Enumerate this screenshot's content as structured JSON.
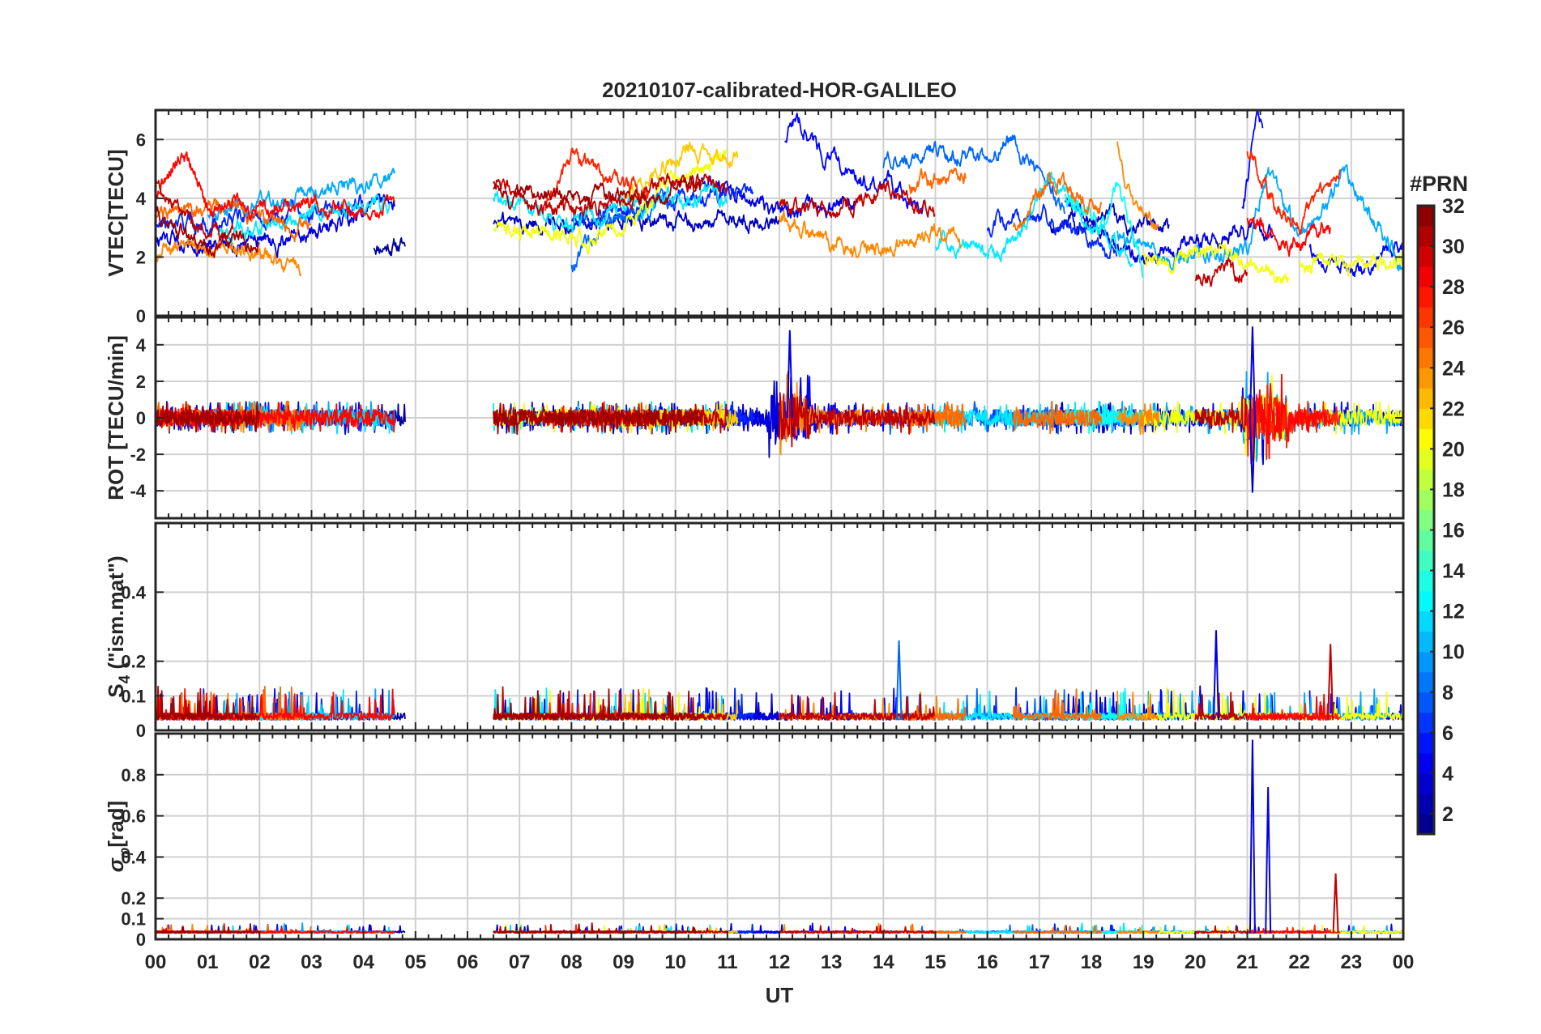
{
  "chart_data": {
    "type": "line",
    "title": "20210107-calibrated-HOR-GALILEO",
    "x_label": "UT",
    "x_tick_labels": [
      "00",
      "01",
      "02",
      "03",
      "04",
      "05",
      "06",
      "07",
      "08",
      "09",
      "10",
      "11",
      "12",
      "13",
      "14",
      "15",
      "16",
      "17",
      "18",
      "19",
      "20",
      "21",
      "22",
      "23",
      "00"
    ],
    "xlim_hours": [
      0,
      24
    ],
    "grid": true,
    "panels": [
      {
        "id": "vtec",
        "ylabel": "VTEC[TECU]",
        "ylim": [
          0,
          7
        ],
        "yticks": [
          0,
          2,
          4,
          6
        ],
        "ytick_labels": [
          "0",
          "2",
          "4",
          "6"
        ]
      },
      {
        "id": "rot",
        "ylabel": "ROT [TECU/min]",
        "ylim": [
          -5.5,
          5.5
        ],
        "yticks": [
          -4,
          -2,
          0,
          2,
          4
        ],
        "ytick_labels": [
          "-4",
          "-2",
          "0",
          "2",
          "4"
        ]
      },
      {
        "id": "s4",
        "ylabel_main": "S",
        "ylabel_sub": "4",
        "ylabel_tail": " (\"ism.mat\")",
        "ylim": [
          0,
          0.6
        ],
        "yticks": [
          0,
          0.1,
          0.2,
          0.4
        ],
        "ytick_labels": [
          "0",
          "0.1",
          "0.2",
          "0.4"
        ]
      },
      {
        "id": "sigma",
        "ylabel_main": "σ",
        "ylabel_sub": "φ",
        "ylabel_tail": "[rad]",
        "ylim": [
          0,
          1
        ],
        "yticks": [
          0,
          0.1,
          0.2,
          0.4,
          0.6,
          0.8
        ],
        "ytick_labels": [
          "0",
          "0.1",
          "0.2",
          "0.4",
          "0.6",
          "0.8"
        ]
      }
    ],
    "colorbar": {
      "title": "#PRN",
      "range": [
        1,
        32
      ],
      "tick_values": [
        2,
        4,
        6,
        8,
        10,
        12,
        14,
        16,
        18,
        20,
        22,
        24,
        26,
        28,
        30,
        32
      ],
      "tick_labels": [
        "2",
        "4",
        "6",
        "8",
        "10",
        "12",
        "14",
        "16",
        "18",
        "20",
        "22",
        "24",
        "26",
        "28",
        "30",
        "32"
      ],
      "colormap": "jet"
    },
    "series": [
      {
        "name": "2",
        "segments": [
          [
            4.2,
            4.8
          ]
        ],
        "anchors": [
          [
            0,
            2.4
          ]
        ]
      },
      {
        "name": "3",
        "segments": [
          [
            6.5,
            12.0
          ],
          [
            17.2,
            19.5
          ]
        ],
        "anchors": [
          [
            0,
            3.2
          ]
        ]
      },
      {
        "name": "4",
        "segments": [
          [
            0.0,
            4.6
          ],
          [
            10.5,
            13.5
          ],
          [
            17.5,
            21.5
          ]
        ],
        "anchors": [
          [
            0,
            2.6
          ],
          [
            2.5,
            2.5
          ],
          [
            3.0,
            2.7
          ],
          [
            4.0,
            3.6
          ],
          [
            4.6,
            3.7
          ],
          [
            10.5,
            4.6
          ],
          [
            11.5,
            4.0
          ],
          [
            12.0,
            3.4
          ],
          [
            13.5,
            3.8
          ],
          [
            17.5,
            3.8
          ],
          [
            19.0,
            1.8
          ],
          [
            21.0,
            2.9
          ],
          [
            21.5,
            2.6
          ]
        ]
      },
      {
        "name": "5",
        "segments": [
          [
            12.1,
            14.8
          ],
          [
            20.9,
            21.3
          ],
          [
            22.2,
            24.0
          ]
        ],
        "anchors": [
          [
            12.1,
            6.0
          ],
          [
            12.3,
            6.8
          ],
          [
            12.8,
            5.6
          ],
          [
            13.5,
            4.6
          ],
          [
            14.0,
            4.6
          ],
          [
            14.8,
            3.8
          ],
          [
            20.9,
            3.5
          ],
          [
            21.2,
            6.6
          ],
          [
            22.2,
            2.2
          ],
          [
            23.0,
            1.6
          ],
          [
            24.0,
            2.5
          ]
        ]
      },
      {
        "name": "6",
        "segments": [
          [
            0.0,
            4.0
          ],
          [
            8.0,
            11.5
          ],
          [
            16.0,
            18.5
          ]
        ],
        "anchors": [
          [
            0,
            3.0
          ],
          [
            1.0,
            3.2
          ],
          [
            2.5,
            3.5
          ],
          [
            4.0,
            3.8
          ],
          [
            8.0,
            3.4
          ],
          [
            9.5,
            3.8
          ],
          [
            11.5,
            4.2
          ],
          [
            16.0,
            3.0
          ],
          [
            17.0,
            3.6
          ],
          [
            18.5,
            2.0
          ]
        ]
      },
      {
        "name": "8",
        "segments": [
          [
            8.0,
            10.0
          ],
          [
            14.0,
            17.5
          ]
        ],
        "anchors": [
          [
            8.0,
            1.8
          ],
          [
            8.5,
            2.8
          ],
          [
            9.2,
            3.6
          ],
          [
            10.0,
            3.9
          ],
          [
            14.0,
            5.2
          ],
          [
            15.0,
            5.6
          ],
          [
            16.0,
            5.4
          ],
          [
            16.5,
            6.1
          ],
          [
            17.5,
            3.4
          ]
        ]
      },
      {
        "name": "10",
        "segments": [
          [
            1.0,
            4.6
          ],
          [
            18.5,
            24.0
          ]
        ],
        "anchors": [
          [
            1.0,
            3.5
          ],
          [
            2.5,
            3.8
          ],
          [
            4.0,
            4.5
          ],
          [
            4.6,
            4.7
          ],
          [
            18.5,
            2.8
          ],
          [
            19.5,
            2.0
          ],
          [
            21.0,
            2.2
          ],
          [
            21.4,
            5.0
          ],
          [
            22.0,
            2.6
          ],
          [
            22.9,
            4.8
          ],
          [
            24.0,
            1.6
          ]
        ]
      },
      {
        "name": "12",
        "segments": [
          [
            1.2,
            4.5
          ],
          [
            6.5,
            11.0
          ],
          [
            15.0,
            18.8
          ]
        ],
        "anchors": [
          [
            1.2,
            2.8
          ],
          [
            3.0,
            3.5
          ],
          [
            4.5,
            3.9
          ],
          [
            6.5,
            3.9
          ],
          [
            8.0,
            3.2
          ],
          [
            9.5,
            3.8
          ],
          [
            11.0,
            4.0
          ],
          [
            15.0,
            2.5
          ],
          [
            16.5,
            2.3
          ],
          [
            17.2,
            4.8
          ],
          [
            18.0,
            3.0
          ],
          [
            18.8,
            2.0
          ]
        ]
      },
      {
        "name": "13",
        "segments": [
          [
            17.5,
            19.0
          ]
        ],
        "anchors": [
          [
            17.5,
            4.2
          ],
          [
            18.2,
            3.0
          ],
          [
            18.5,
            4.5
          ],
          [
            19.0,
            1.6
          ]
        ]
      },
      {
        "name": "20",
        "segments": [
          [
            6.5,
            11.0
          ],
          [
            19.0,
            21.8
          ],
          [
            22.0,
            24.0
          ]
        ],
        "anchors": [
          [
            6.5,
            3.0
          ],
          [
            7.5,
            2.8
          ],
          [
            8.5,
            2.6
          ],
          [
            9.5,
            3.8
          ],
          [
            10.4,
            5.0
          ],
          [
            11.0,
            5.5
          ],
          [
            19.0,
            2.0
          ],
          [
            20.5,
            2.1
          ],
          [
            21.8,
            1.2
          ],
          [
            22.0,
            1.8
          ],
          [
            23.0,
            1.8
          ],
          [
            24.0,
            1.8
          ]
        ]
      },
      {
        "name": "22",
        "segments": [
          [
            9.0,
            11.2
          ]
        ],
        "anchors": [
          [
            9.0,
            3.8
          ],
          [
            9.6,
            5.0
          ],
          [
            10.3,
            5.6
          ],
          [
            11.2,
            5.4
          ]
        ]
      },
      {
        "name": "24",
        "segments": [
          [
            0.0,
            2.8
          ],
          [
            12.0,
            15.5
          ],
          [
            18.5,
            19.3
          ]
        ],
        "anchors": [
          [
            0,
            2.2
          ],
          [
            1.0,
            2.4
          ],
          [
            2.0,
            2.2
          ],
          [
            2.8,
            1.4
          ],
          [
            12.0,
            3.5
          ],
          [
            13.0,
            2.4
          ],
          [
            14.0,
            2.2
          ],
          [
            15.0,
            2.8
          ],
          [
            15.5,
            2.5
          ],
          [
            18.5,
            5.8
          ],
          [
            18.8,
            3.8
          ],
          [
            19.3,
            3.2
          ]
        ]
      },
      {
        "name": "25",
        "segments": [
          [
            0.0,
            3.0
          ],
          [
            14.5,
            15.6
          ],
          [
            16.5,
            18.2
          ]
        ],
        "anchors": [
          [
            0,
            3.4
          ],
          [
            1.0,
            3.8
          ],
          [
            2.0,
            3.3
          ],
          [
            3.0,
            3.0
          ],
          [
            14.5,
            4.4
          ],
          [
            15.0,
            4.6
          ],
          [
            15.6,
            4.8
          ],
          [
            16.5,
            3.2
          ],
          [
            17.2,
            4.6
          ],
          [
            18.2,
            3.6
          ]
        ]
      },
      {
        "name": "27",
        "segments": [
          [
            7.5,
            9.5
          ],
          [
            21.0,
            22.8
          ]
        ],
        "anchors": [
          [
            7.5,
            3.6
          ],
          [
            8.0,
            5.5
          ],
          [
            8.8,
            4.6
          ],
          [
            9.5,
            4.2
          ],
          [
            21.0,
            5.6
          ],
          [
            21.5,
            3.8
          ],
          [
            22.0,
            3.0
          ],
          [
            22.5,
            4.5
          ],
          [
            22.8,
            5.2
          ]
        ]
      },
      {
        "name": "28",
        "segments": [
          [
            0.0,
            4.6
          ],
          [
            21.0,
            22.6
          ]
        ],
        "anchors": [
          [
            0,
            4.2
          ],
          [
            0.5,
            5.6
          ],
          [
            1.0,
            3.8
          ],
          [
            2.0,
            3.6
          ],
          [
            3.0,
            3.9
          ],
          [
            4.0,
            3.6
          ],
          [
            4.6,
            4.0
          ],
          [
            21.0,
            3.2
          ],
          [
            21.8,
            2.4
          ],
          [
            22.6,
            3.0
          ]
        ]
      },
      {
        "name": "30",
        "segments": [
          [
            0.0,
            1.5
          ],
          [
            6.5,
            11.0
          ],
          [
            12.0,
            15.0
          ],
          [
            20.0,
            21.0
          ]
        ],
        "anchors": [
          [
            0,
            4.6
          ],
          [
            0.6,
            3.0
          ],
          [
            1.5,
            2.6
          ],
          [
            6.5,
            4.6
          ],
          [
            7.5,
            3.6
          ],
          [
            9.0,
            3.9
          ],
          [
            10.0,
            4.5
          ],
          [
            11.0,
            4.4
          ],
          [
            12.0,
            3.8
          ],
          [
            13.0,
            3.4
          ],
          [
            14.0,
            4.4
          ],
          [
            15.0,
            3.6
          ],
          [
            20.0,
            1.3
          ],
          [
            21.0,
            1.6
          ]
        ]
      },
      {
        "name": "31",
        "segments": [
          [
            0.0,
            2.0
          ],
          [
            6.5,
            10.5
          ]
        ],
        "anchors": [
          [
            0,
            3.4
          ],
          [
            1.0,
            2.4
          ],
          [
            2.0,
            2.6
          ],
          [
            6.5,
            4.2
          ],
          [
            8.0,
            4.0
          ],
          [
            9.5,
            4.0
          ],
          [
            10.5,
            4.6
          ]
        ]
      }
    ],
    "notes_features": [
      {
        "panel": "rot",
        "hour": 12.2,
        "value": 4.8
      },
      {
        "panel": "rot",
        "hour": 21.1,
        "value": 5.0
      },
      {
        "panel": "rot",
        "hour": 21.1,
        "value": -4.1
      },
      {
        "panel": "sigma",
        "hour": 21.1,
        "value": 0.97
      },
      {
        "panel": "sigma",
        "hour": 21.4,
        "value": 0.74
      },
      {
        "panel": "sigma",
        "hour": 22.7,
        "value": 0.32
      },
      {
        "panel": "s4",
        "hour": 20.4,
        "value": 0.29
      },
      {
        "panel": "s4",
        "hour": 14.3,
        "value": 0.26
      },
      {
        "panel": "s4",
        "hour": 22.6,
        "value": 0.25
      }
    ]
  }
}
